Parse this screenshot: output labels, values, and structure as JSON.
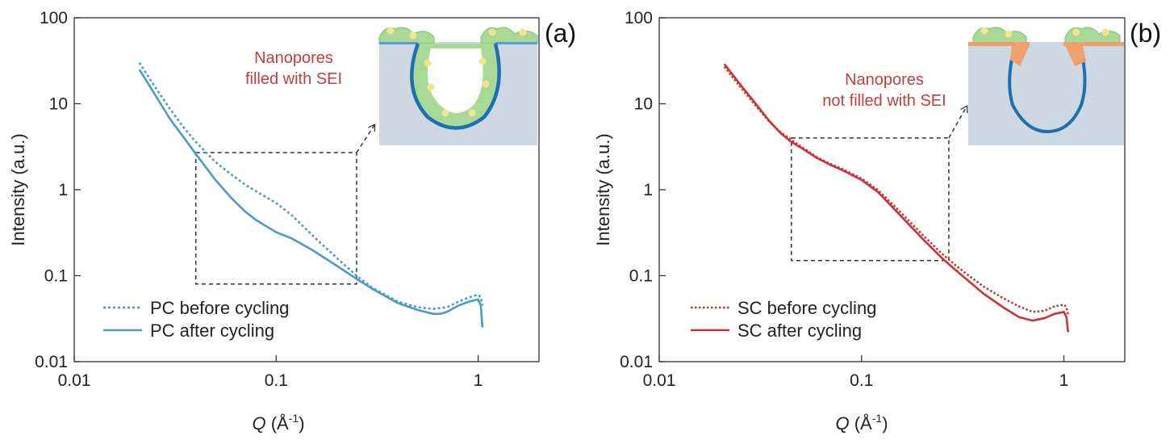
{
  "chart_data": [
    {
      "type": "line",
      "panel_label": "(a)",
      "xlabel_main": "Q",
      "xlabel_unit": " (Å",
      "xlabel_exp": "-1",
      "xlabel_close": ")",
      "ylabel": "Intensity (a.u.)",
      "x_scale": "log",
      "y_scale": "log",
      "xlim": [
        0.01,
        2
      ],
      "ylim": [
        0.01,
        100
      ],
      "x_ticks": [
        {
          "v": 0.01,
          "label": "0.01"
        },
        {
          "v": 0.1,
          "label": "0.1"
        },
        {
          "v": 1,
          "label": "1"
        }
      ],
      "y_ticks": [
        {
          "v": 0.01,
          "label": "0.01"
        },
        {
          "v": 0.1,
          "label": "0.1"
        },
        {
          "v": 1,
          "label": "1"
        },
        {
          "v": 10,
          "label": "10"
        },
        {
          "v": 100,
          "label": "100"
        }
      ],
      "legend_position": "bottom-left",
      "series": [
        {
          "name": "PC before cycling",
          "style": "dotted",
          "color": "#4a9cc7",
          "x": [
            0.021,
            0.025,
            0.03,
            0.035,
            0.04,
            0.05,
            0.06,
            0.07,
            0.08,
            0.1,
            0.12,
            0.15,
            0.2,
            0.25,
            0.3,
            0.4,
            0.5,
            0.6,
            0.7,
            0.8,
            0.9,
            1.0,
            1.03,
            1.05
          ],
          "y": [
            30,
            16,
            8.5,
            5.2,
            3.6,
            2.1,
            1.5,
            1.15,
            0.95,
            0.7,
            0.5,
            0.3,
            0.16,
            0.1,
            0.072,
            0.05,
            0.043,
            0.041,
            0.043,
            0.05,
            0.056,
            0.06,
            0.056,
            0.045
          ]
        },
        {
          "name": "PC after cycling",
          "style": "solid",
          "color": "#4a9cc7",
          "x": [
            0.021,
            0.025,
            0.03,
            0.035,
            0.04,
            0.05,
            0.06,
            0.07,
            0.08,
            0.1,
            0.12,
            0.15,
            0.2,
            0.25,
            0.3,
            0.4,
            0.5,
            0.6,
            0.65,
            0.7,
            0.8,
            0.9,
            1.0,
            1.03,
            1.05
          ],
          "y": [
            25,
            13,
            6.5,
            4.0,
            2.6,
            1.3,
            0.8,
            0.56,
            0.44,
            0.32,
            0.27,
            0.2,
            0.13,
            0.092,
            0.07,
            0.048,
            0.04,
            0.036,
            0.036,
            0.038,
            0.045,
            0.05,
            0.053,
            0.045,
            0.025
          ]
        }
      ],
      "annotation": {
        "lines": [
          "Nanopores",
          "filled with SEI"
        ],
        "color": "#c1403f"
      },
      "zoom_box": {
        "x": [
          0.04,
          0.25
        ],
        "y": [
          0.08,
          2.7
        ]
      }
    },
    {
      "type": "line",
      "panel_label": "(b)",
      "xlabel_main": "Q",
      "xlabel_unit": " (Å",
      "xlabel_exp": "-1",
      "xlabel_close": ")",
      "ylabel": "Intensity (a.u.)",
      "x_scale": "log",
      "y_scale": "log",
      "xlim": [
        0.01,
        2
      ],
      "ylim": [
        0.01,
        100
      ],
      "x_ticks": [
        {
          "v": 0.01,
          "label": "0.01"
        },
        {
          "v": 0.1,
          "label": "0.1"
        },
        {
          "v": 1,
          "label": "1"
        }
      ],
      "y_ticks": [
        {
          "v": 0.01,
          "label": "0.01"
        },
        {
          "v": 0.1,
          "label": "0.1"
        },
        {
          "v": 1,
          "label": "1"
        },
        {
          "v": 10,
          "label": "10"
        },
        {
          "v": 100,
          "label": "100"
        }
      ],
      "legend_position": "bottom-left",
      "series": [
        {
          "name": "SC before cycling",
          "style": "dotted",
          "color": "#c7343a",
          "x": [
            0.021,
            0.025,
            0.03,
            0.035,
            0.04,
            0.045,
            0.05,
            0.06,
            0.07,
            0.08,
            0.1,
            0.12,
            0.15,
            0.2,
            0.25,
            0.3,
            0.4,
            0.5,
            0.6,
            0.7,
            0.8,
            0.9,
            1.0,
            1.03,
            1.05
          ],
          "y": [
            27,
            16,
            9.5,
            6.2,
            4.6,
            3.8,
            3.2,
            2.4,
            2.0,
            1.75,
            1.35,
            1.0,
            0.6,
            0.3,
            0.18,
            0.125,
            0.075,
            0.055,
            0.044,
            0.038,
            0.039,
            0.044,
            0.046,
            0.043,
            0.035
          ]
        },
        {
          "name": "SC after cycling",
          "style": "solid",
          "color": "#c7343a",
          "x": [
            0.021,
            0.025,
            0.03,
            0.035,
            0.04,
            0.045,
            0.05,
            0.06,
            0.07,
            0.08,
            0.1,
            0.12,
            0.15,
            0.2,
            0.25,
            0.3,
            0.4,
            0.5,
            0.6,
            0.7,
            0.8,
            0.9,
            1.0,
            1.03,
            1.05
          ],
          "y": [
            29,
            17,
            10,
            6.3,
            4.5,
            3.6,
            3.1,
            2.35,
            1.95,
            1.7,
            1.3,
            0.95,
            0.55,
            0.27,
            0.16,
            0.11,
            0.062,
            0.043,
            0.033,
            0.03,
            0.032,
            0.036,
            0.038,
            0.033,
            0.022
          ]
        }
      ],
      "annotation": {
        "lines": [
          "Nanopores",
          "not filled with SEI"
        ],
        "color": "#c1403f"
      },
      "zoom_box": {
        "x": [
          0.045,
          0.27
        ],
        "y": [
          0.15,
          4.0
        ]
      }
    }
  ]
}
